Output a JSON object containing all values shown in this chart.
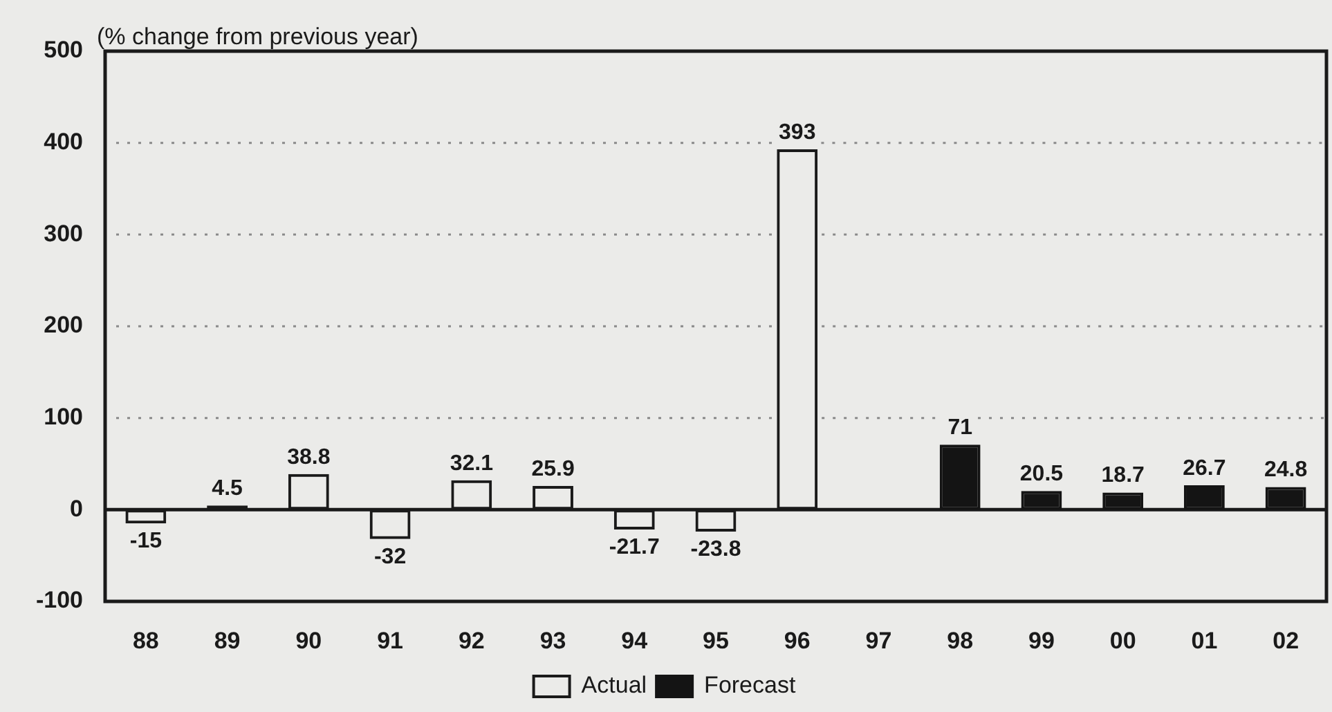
{
  "chart_data": {
    "type": "bar",
    "ylabel": "(% change from previous year)",
    "categories": [
      "88",
      "89",
      "90",
      "91",
      "92",
      "93",
      "94",
      "95",
      "96",
      "97",
      "98",
      "99",
      "00",
      "01",
      "02"
    ],
    "series": [
      {
        "name": "Actual",
        "color": "#1a1a1a",
        "values": [
          -15,
          4.5,
          38.8,
          -32,
          32.1,
          25.9,
          -21.7,
          -23.8,
          393,
          null,
          null,
          null,
          null,
          null,
          null
        ]
      },
      {
        "name": "Forecast",
        "color": "#141414",
        "values": [
          null,
          null,
          null,
          null,
          null,
          null,
          null,
          null,
          null,
          null,
          71,
          20.5,
          18.7,
          26.7,
          24.8
        ]
      }
    ],
    "ylim": [
      -100,
      500
    ],
    "yticks": [
      -100,
      0,
      100,
      200,
      300,
      400,
      500
    ],
    "grid": "y",
    "legend": "bottom",
    "data_labels": true
  }
}
